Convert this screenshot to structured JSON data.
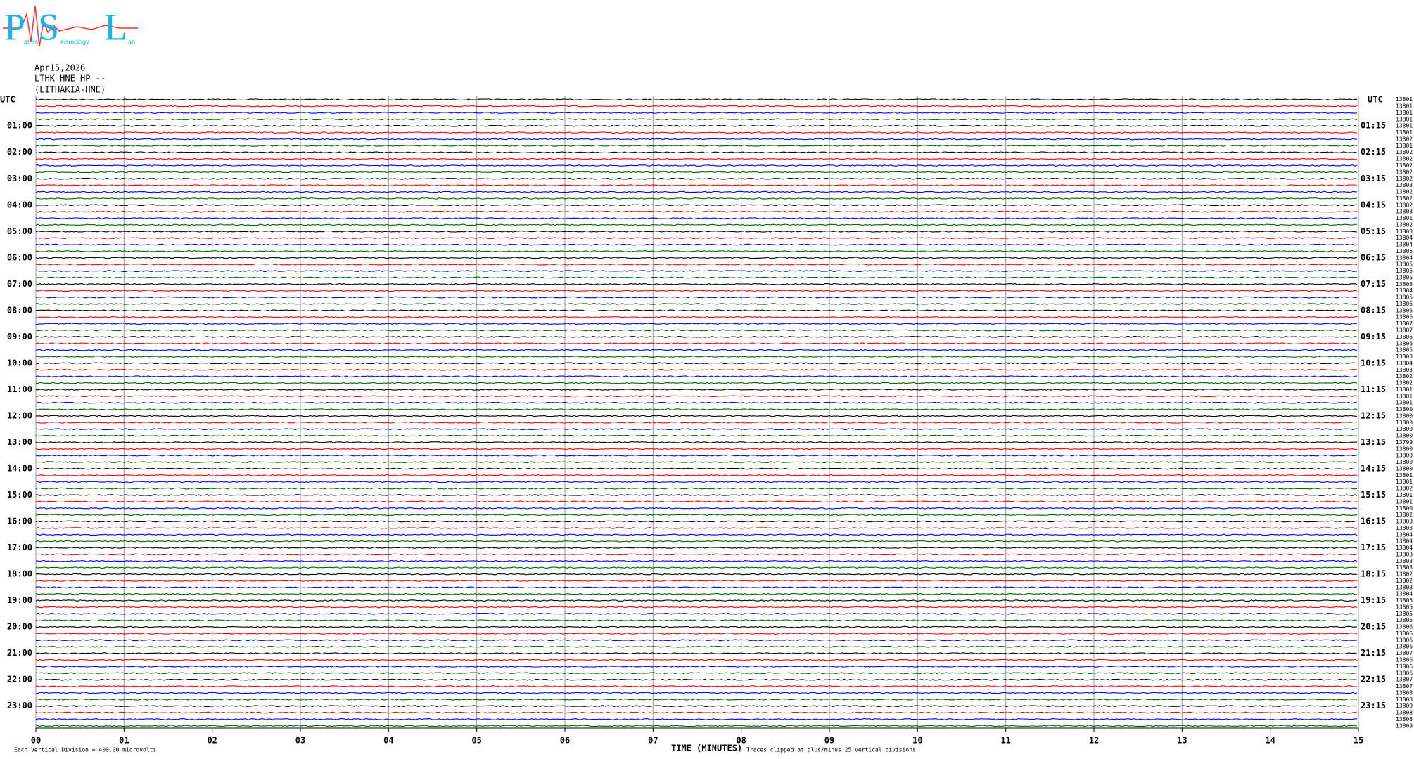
{
  "logo": {
    "letters": [
      "P",
      "S",
      "L"
    ],
    "words": [
      "atras",
      "eismology",
      "ab"
    ]
  },
  "header": {
    "date": "Apr15,2026",
    "station": "LTHK HNE HP --",
    "name": "(LITHAKIA-HNE)"
  },
  "left_axis": {
    "title": "UTC",
    "labels": [
      "01:00",
      "02:00",
      "03:00",
      "04:00",
      "05:00",
      "06:00",
      "07:00",
      "08:00",
      "09:00",
      "10:00",
      "11:00",
      "12:00",
      "13:00",
      "14:00",
      "15:00",
      "16:00",
      "17:00",
      "18:00",
      "19:00",
      "20:00",
      "21:00",
      "22:00",
      "23:00"
    ]
  },
  "right_axis": {
    "title": "UTC",
    "labels": [
      "01:15",
      "02:15",
      "03:15",
      "04:15",
      "05:15",
      "06:15",
      "07:15",
      "08:15",
      "09:15",
      "10:15",
      "11:15",
      "12:15",
      "13:15",
      "14:15",
      "15:15",
      "16:15",
      "17:15",
      "18:15",
      "19:15",
      "20:15",
      "21:15",
      "22:15",
      "23:15"
    ]
  },
  "trace_colors": [
    "#000000",
    "#ff0000",
    "#0000ff",
    "#006400"
  ],
  "trace_counts": [
    13801,
    13801,
    13801,
    13801,
    13801,
    13801,
    13802,
    13801,
    13802,
    13802,
    13802,
    13802,
    13802,
    13803,
    13802,
    13802,
    13802,
    13803,
    13801,
    13802,
    13803,
    13804,
    13804,
    13805,
    13804,
    13805,
    13805,
    13805,
    13805,
    13804,
    13805,
    13805,
    13806,
    13806,
    13807,
    13807,
    13806,
    13806,
    13805,
    13803,
    13804,
    13803,
    13802,
    13802,
    13801,
    13801,
    13801,
    13800,
    13800,
    13800,
    13800,
    13800,
    13799,
    13800,
    13800,
    13800,
    13800,
    13801,
    13801,
    13802,
    13801,
    13801,
    13800,
    13802,
    13803,
    13803,
    13804,
    13804,
    13804,
    13803,
    13803,
    13803,
    13802,
    13802,
    13803,
    13804,
    13805,
    13805,
    13805,
    13805,
    13806,
    13806,
    13806,
    13806,
    13807,
    13806,
    13806,
    13806,
    13807,
    13807,
    13808,
    13808,
    13809,
    13808,
    13808,
    13809
  ],
  "x_axis": {
    "title": "TIME (MINUTES)",
    "ticks": [
      "00",
      "01",
      "02",
      "03",
      "04",
      "05",
      "06",
      "07",
      "08",
      "09",
      "10",
      "11",
      "12",
      "13",
      "14",
      "15"
    ]
  },
  "footer": {
    "scale": "Each Vertical Division =  400.00 microvolts",
    "clip": "Traces clipped at plus/minus 25 vertical divisions"
  }
}
